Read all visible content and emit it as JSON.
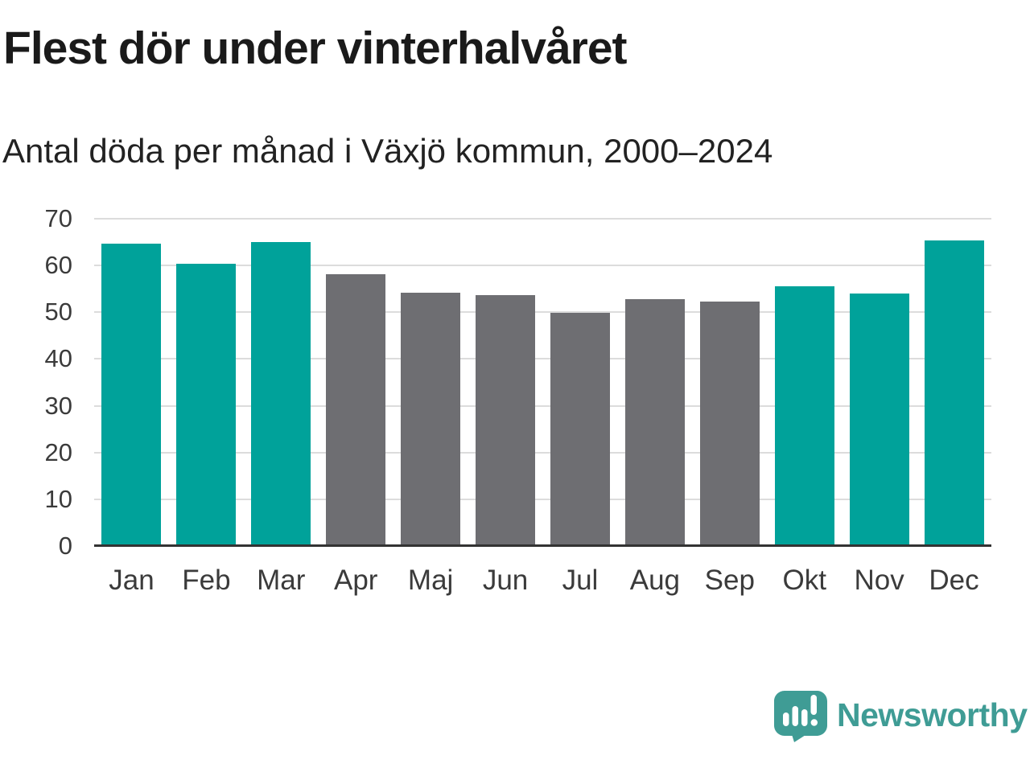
{
  "title": "Flest dör under vinterhalvåret",
  "subtitle": "Antal döda per månad i Växjö kommun, 2000–2024",
  "colors": {
    "winter_bar": "#00a29a",
    "summer_bar": "#6e6e72",
    "gridline": "#dcdcdc",
    "axis_line": "#333333",
    "axis_text": "#3b3b3b",
    "title_text": "#1a1a1a",
    "logo_teal": "#3f9c95"
  },
  "chart_data": {
    "type": "bar",
    "title": "Flest dör under vinterhalvåret",
    "subtitle": "Antal döda per månad i Växjö kommun, 2000–2024",
    "categories": [
      "Jan",
      "Feb",
      "Mar",
      "Apr",
      "Maj",
      "Jun",
      "Jul",
      "Aug",
      "Sep",
      "Okt",
      "Nov",
      "Dec"
    ],
    "values": [
      64.7,
      60.3,
      65.0,
      58.1,
      54.2,
      53.7,
      49.8,
      52.8,
      52.3,
      55.6,
      54.0,
      65.3
    ],
    "bar_color_keys": [
      "winter_bar",
      "winter_bar",
      "winter_bar",
      "summer_bar",
      "summer_bar",
      "summer_bar",
      "summer_bar",
      "summer_bar",
      "summer_bar",
      "winter_bar",
      "winter_bar",
      "winter_bar"
    ],
    "xlabel": "",
    "ylabel": "",
    "ylim": [
      0,
      70
    ],
    "yticks": [
      0,
      10,
      20,
      30,
      40,
      50,
      60,
      70
    ],
    "grid": true,
    "legend_position": "none"
  },
  "footer": {
    "brand": "Newsworthy",
    "logo_icon": "speech-bubble-bar-chart-icon"
  }
}
